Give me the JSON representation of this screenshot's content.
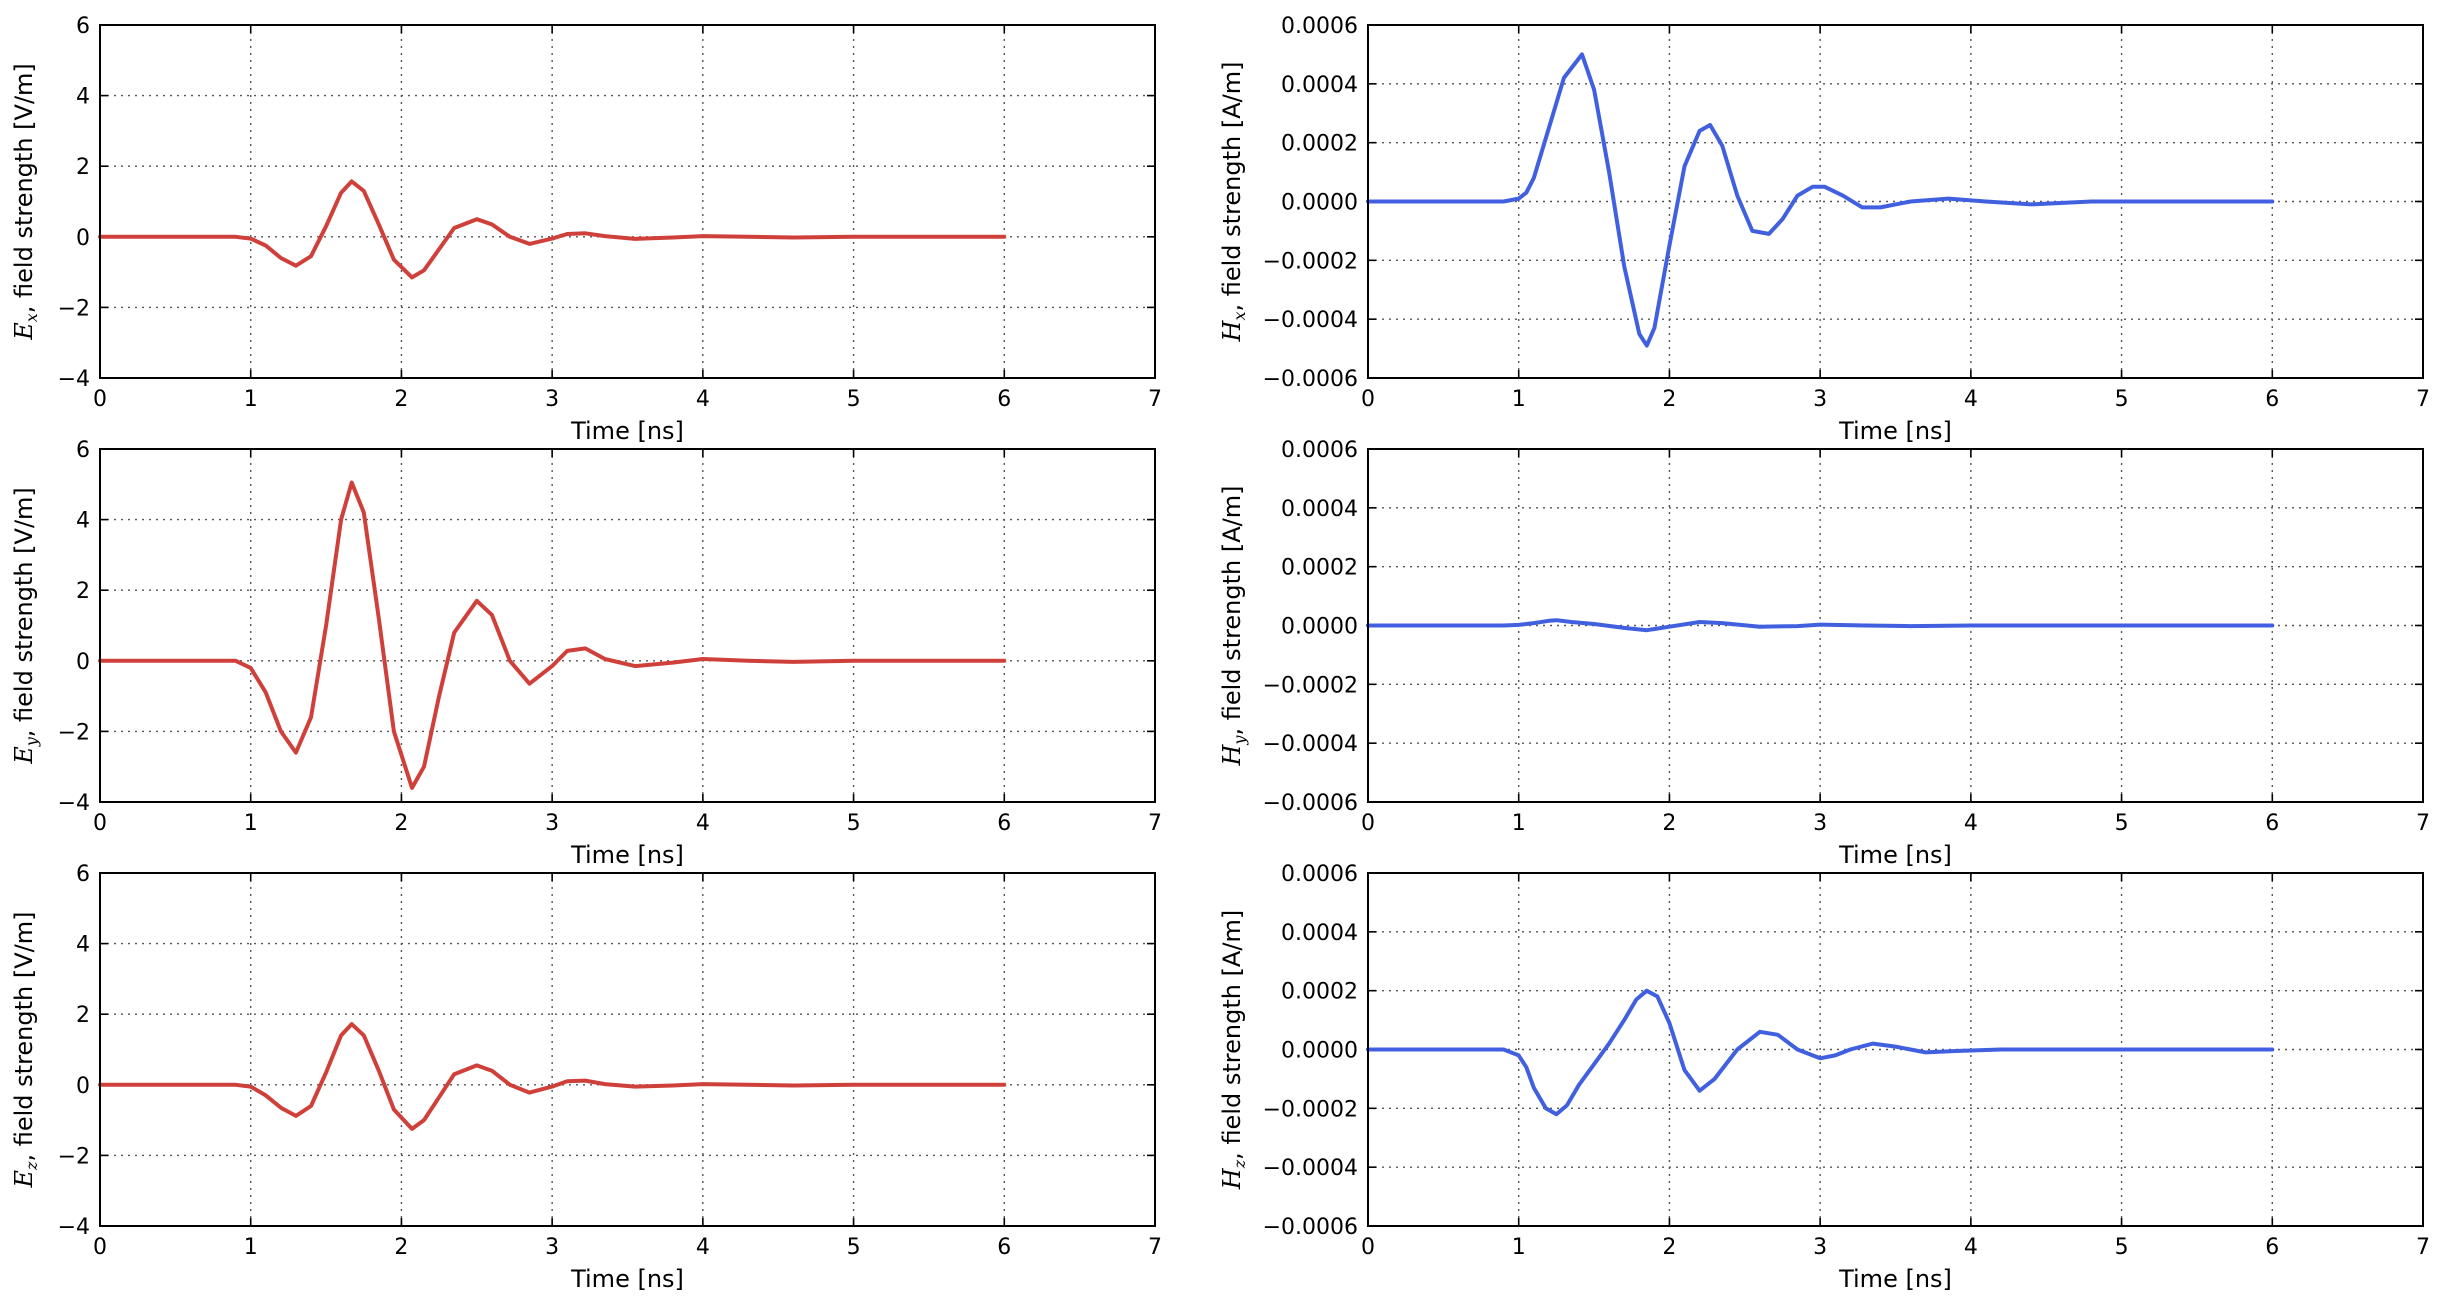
{
  "chart_data": [
    {
      "type": "line",
      "xlabel": "Time [ns]",
      "ylabel": {
        "symbol": "E",
        "subscript": "x",
        "text": ", field strength [V/m]"
      },
      "xlim": [
        0,
        7
      ],
      "ylim": [
        -4,
        6
      ],
      "x_ticks": [
        "0",
        "1",
        "2",
        "3",
        "4",
        "5",
        "6",
        "7"
      ],
      "y_ticks": [
        "−4",
        "−2",
        "0",
        "2",
        "4",
        "6"
      ],
      "grid": true,
      "color": "#d0403a",
      "series": [
        {
          "x": [
            0,
            0.9,
            1.0,
            1.1,
            1.2,
            1.3,
            1.4,
            1.5,
            1.6,
            1.67,
            1.75,
            1.85,
            1.95,
            2.07,
            2.15,
            2.25,
            2.35,
            2.5,
            2.6,
            2.72,
            2.85,
            3.0,
            3.1,
            3.22,
            3.35,
            3.55,
            3.8,
            4.0,
            4.3,
            4.6,
            5.0,
            5.5,
            6.0
          ],
          "y": [
            0,
            0,
            -0.05,
            -0.25,
            -0.6,
            -0.82,
            -0.55,
            0.3,
            1.25,
            1.57,
            1.3,
            0.35,
            -0.65,
            -1.15,
            -0.95,
            -0.35,
            0.25,
            0.5,
            0.35,
            0.0,
            -0.2,
            -0.05,
            0.08,
            0.1,
            0.02,
            -0.06,
            -0.02,
            0.02,
            0.0,
            -0.02,
            0.0,
            0.0,
            0.0
          ]
        }
      ]
    },
    {
      "type": "line",
      "xlabel": "Time [ns]",
      "ylabel": {
        "symbol": "H",
        "subscript": "x",
        "text": ", field strength [A/m]"
      },
      "xlim": [
        0,
        7
      ],
      "ylim": [
        -0.0006,
        0.0006
      ],
      "x_ticks": [
        "0",
        "1",
        "2",
        "3",
        "4",
        "5",
        "6",
        "7"
      ],
      "y_ticks": [
        "−0.0006",
        "−0.0004",
        "−0.0002",
        "0.0000",
        "0.0002",
        "0.0004",
        "0.0006"
      ],
      "grid": true,
      "color": "#4060e0",
      "series": [
        {
          "x": [
            0,
            0.9,
            1.0,
            1.05,
            1.1,
            1.2,
            1.3,
            1.42,
            1.5,
            1.6,
            1.7,
            1.8,
            1.85,
            1.9,
            2.0,
            2.1,
            2.2,
            2.27,
            2.35,
            2.45,
            2.55,
            2.66,
            2.75,
            2.85,
            2.95,
            3.03,
            3.15,
            3.28,
            3.4,
            3.6,
            3.85,
            4.1,
            4.4,
            4.8,
            5.2,
            5.6,
            6.0
          ],
          "y": [
            0,
            0,
            1e-05,
            3e-05,
            8e-05,
            0.00025,
            0.00042,
            0.0005,
            0.00038,
            0.0001,
            -0.00022,
            -0.00045,
            -0.00049,
            -0.00043,
            -0.00015,
            0.00012,
            0.00024,
            0.00026,
            0.00019,
            2e-05,
            -0.0001,
            -0.00011,
            -6e-05,
            2e-05,
            5e-05,
            5e-05,
            2e-05,
            -2e-05,
            -2e-05,
            0.0,
            1e-05,
            0.0,
            -1e-05,
            0.0,
            0.0,
            0.0,
            0.0
          ]
        }
      ]
    },
    {
      "type": "line",
      "xlabel": "Time [ns]",
      "ylabel": {
        "symbol": "E",
        "subscript": "y",
        "text": ", field strength [V/m]"
      },
      "xlim": [
        0,
        7
      ],
      "ylim": [
        -4,
        6
      ],
      "x_ticks": [
        "0",
        "1",
        "2",
        "3",
        "4",
        "5",
        "6",
        "7"
      ],
      "y_ticks": [
        "−4",
        "−2",
        "0",
        "2",
        "4",
        "6"
      ],
      "grid": true,
      "color": "#d0403a",
      "series": [
        {
          "x": [
            0,
            0.9,
            1.0,
            1.1,
            1.2,
            1.3,
            1.4,
            1.5,
            1.6,
            1.67,
            1.75,
            1.85,
            1.95,
            2.07,
            2.15,
            2.25,
            2.35,
            2.5,
            2.6,
            2.72,
            2.85,
            3.0,
            3.1,
            3.22,
            3.35,
            3.55,
            3.8,
            4.0,
            4.3,
            4.6,
            5.0,
            5.5,
            6.0
          ],
          "y": [
            0,
            0,
            -0.2,
            -0.9,
            -2.0,
            -2.6,
            -1.6,
            1.0,
            4.0,
            5.05,
            4.2,
            1.2,
            -2.0,
            -3.6,
            -3.0,
            -1.0,
            0.8,
            1.7,
            1.3,
            0.0,
            -0.65,
            -0.15,
            0.28,
            0.35,
            0.05,
            -0.15,
            -0.05,
            0.05,
            0.0,
            -0.03,
            0.0,
            0.0,
            0.0
          ]
        }
      ]
    },
    {
      "type": "line",
      "xlabel": "Time [ns]",
      "ylabel": {
        "symbol": "H",
        "subscript": "y",
        "text": ", field strength [A/m]"
      },
      "xlim": [
        0,
        7
      ],
      "ylim": [
        -0.0006,
        0.0006
      ],
      "x_ticks": [
        "0",
        "1",
        "2",
        "3",
        "4",
        "5",
        "6",
        "7"
      ],
      "y_ticks": [
        "−0.0006",
        "−0.0004",
        "−0.0002",
        "0.0000",
        "0.0002",
        "0.0004",
        "0.0006"
      ],
      "grid": true,
      "color": "#4060e0",
      "series": [
        {
          "x": [
            0,
            0.9,
            1.0,
            1.1,
            1.2,
            1.25,
            1.35,
            1.5,
            1.7,
            1.85,
            2.0,
            2.2,
            2.35,
            2.6,
            2.85,
            3.0,
            3.3,
            3.6,
            4.0,
            5.0,
            6.0
          ],
          "y": [
            0,
            0,
            2e-06,
            8e-06,
            1.6e-05,
            1.8e-05,
            1.2e-05,
            5e-06,
            -8e-06,
            -1.6e-05,
            -4e-06,
            1.2e-05,
            8e-06,
            -4e-06,
            -2e-06,
            3e-06,
            0.0,
            -2e-06,
            0.0,
            0.0,
            0.0
          ]
        }
      ]
    },
    {
      "type": "line",
      "xlabel": "Time [ns]",
      "ylabel": {
        "symbol": "E",
        "subscript": "z",
        "text": ", field strength [V/m]"
      },
      "xlim": [
        0,
        7
      ],
      "ylim": [
        -4,
        6
      ],
      "x_ticks": [
        "0",
        "1",
        "2",
        "3",
        "4",
        "5",
        "6",
        "7"
      ],
      "y_ticks": [
        "−4",
        "−2",
        "0",
        "2",
        "4",
        "6"
      ],
      "grid": true,
      "color": "#d0403a",
      "series": [
        {
          "x": [
            0,
            0.9,
            1.0,
            1.1,
            1.2,
            1.3,
            1.4,
            1.5,
            1.6,
            1.67,
            1.75,
            1.85,
            1.95,
            2.07,
            2.15,
            2.25,
            2.35,
            2.5,
            2.6,
            2.72,
            2.85,
            3.0,
            3.1,
            3.22,
            3.35,
            3.55,
            3.8,
            4.0,
            4.3,
            4.6,
            5.0,
            5.5,
            6.0
          ],
          "y": [
            0,
            0,
            -0.05,
            -0.3,
            -0.65,
            -0.88,
            -0.6,
            0.35,
            1.4,
            1.72,
            1.4,
            0.4,
            -0.7,
            -1.25,
            -1.0,
            -0.35,
            0.3,
            0.55,
            0.4,
            0.0,
            -0.22,
            -0.05,
            0.1,
            0.12,
            0.02,
            -0.05,
            -0.02,
            0.02,
            0.0,
            -0.02,
            0.0,
            0.0,
            0.0
          ]
        }
      ]
    },
    {
      "type": "line",
      "xlabel": "Time [ns]",
      "ylabel": {
        "symbol": "H",
        "subscript": "z",
        "text": ", field strength [A/m]"
      },
      "xlim": [
        0,
        7
      ],
      "ylim": [
        -0.0006,
        0.0006
      ],
      "x_ticks": [
        "0",
        "1",
        "2",
        "3",
        "4",
        "5",
        "6",
        "7"
      ],
      "y_ticks": [
        "−0.0006",
        "−0.0004",
        "−0.0002",
        "0.0000",
        "0.0002",
        "0.0004",
        "0.0006"
      ],
      "grid": true,
      "color": "#4060e0",
      "series": [
        {
          "x": [
            0,
            0.9,
            1.0,
            1.05,
            1.1,
            1.18,
            1.25,
            1.32,
            1.4,
            1.5,
            1.6,
            1.7,
            1.78,
            1.85,
            1.92,
            2.0,
            2.1,
            2.2,
            2.3,
            2.45,
            2.6,
            2.72,
            2.85,
            3.0,
            3.1,
            3.2,
            3.35,
            3.5,
            3.7,
            3.9,
            4.2,
            4.6,
            5.0,
            5.5,
            6.0
          ],
          "y": [
            0,
            0,
            -2e-05,
            -6e-05,
            -0.00013,
            -0.0002,
            -0.00022,
            -0.00019,
            -0.00012,
            -5e-05,
            2e-05,
            0.0001,
            0.00017,
            0.0002,
            0.00018,
            9e-05,
            -7e-05,
            -0.00014,
            -0.0001,
            0.0,
            6e-05,
            5e-05,
            0.0,
            -3e-05,
            -2e-05,
            0.0,
            2e-05,
            1e-05,
            -1e-05,
            -5e-06,
            0.0,
            0.0,
            0.0,
            0.0,
            0.0
          ]
        }
      ]
    }
  ]
}
